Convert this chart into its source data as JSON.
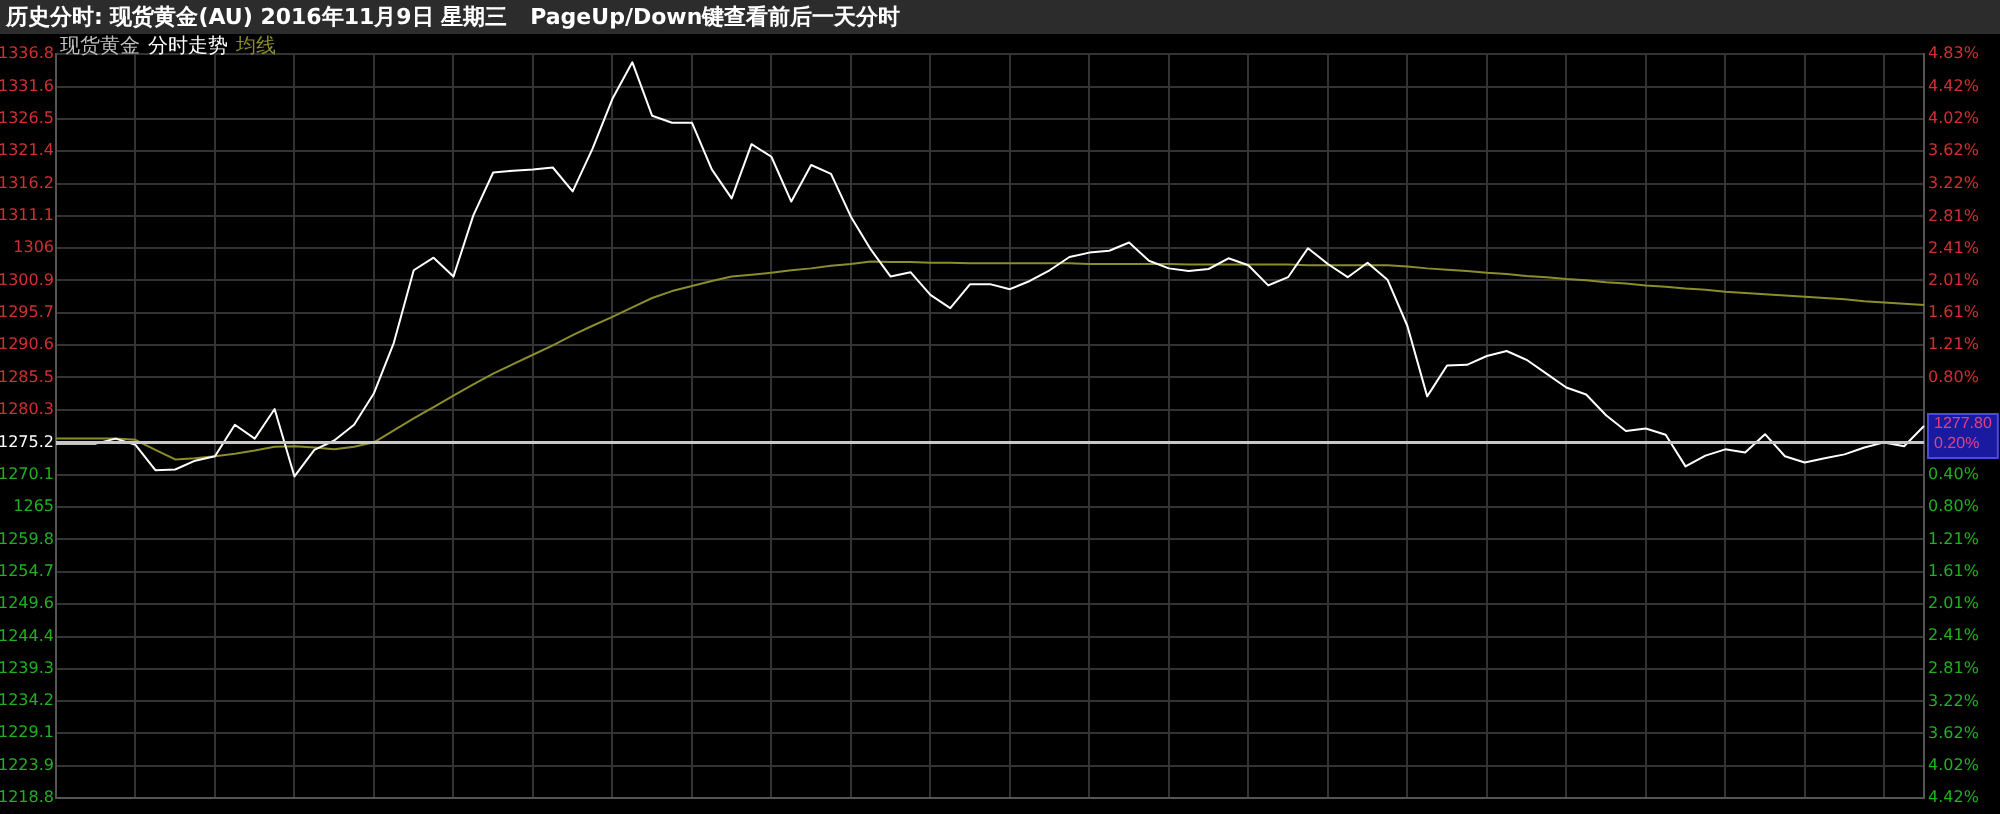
{
  "chart_data": {
    "type": "line",
    "title": "历史分时: 现货黄金(AU) 2016年11月9日 星期三   PageUp/Down键查看前后一天分时",
    "legend_title": "现货黄金",
    "categories": [
      null,
      null,
      null,
      null,
      null,
      null,
      null,
      null,
      null,
      null,
      null,
      null,
      null,
      null,
      null,
      null,
      null,
      null,
      null,
      null,
      null,
      null,
      null,
      null,
      null,
      null,
      null,
      null,
      null,
      null,
      null,
      null,
      null,
      null,
      null,
      null,
      null,
      null,
      null,
      null,
      null,
      null,
      null,
      null,
      null,
      null,
      null,
      null,
      null,
      null,
      null,
      null,
      null,
      null,
      null,
      null,
      null,
      null,
      null,
      null,
      null,
      null,
      null,
      null,
      null,
      null,
      null,
      null,
      null,
      null,
      null,
      null,
      null,
      null,
      null,
      null,
      null,
      null,
      null,
      null,
      null,
      null,
      null,
      null,
      null,
      null,
      null,
      null,
      null,
      null,
      null,
      null,
      null,
      null,
      null
    ],
    "series": [
      {
        "name": "分时走势",
        "color": "#ffffff",
        "values": [
          1275.0,
          1275.0,
          1275.0,
          1275.8,
          1274.8,
          1270.8,
          1270.9,
          1272.3,
          1273.0,
          1278.0,
          1275.8,
          1280.5,
          1269.8,
          1274.0,
          1275.5,
          1278.0,
          1283.0,
          1291.0,
          1302.5,
          1304.5,
          1301.5,
          1311.2,
          1318.0,
          1318.3,
          1318.5,
          1318.8,
          1315.0,
          1321.8,
          1329.7,
          1335.5,
          1327.0,
          1325.9,
          1325.9,
          1318.5,
          1313.9,
          1322.5,
          1320.5,
          1313.4,
          1319.2,
          1317.8,
          1311.0,
          1305.8,
          1301.5,
          1302.2,
          1298.6,
          1296.5,
          1300.3,
          1300.3,
          1299.5,
          1300.8,
          1302.5,
          1304.6,
          1305.3,
          1305.6,
          1306.9,
          1304.0,
          1302.8,
          1302.4,
          1302.7,
          1304.4,
          1303.3,
          1300.1,
          1301.4,
          1306.0,
          1303.5,
          1301.4,
          1303.7,
          1301.0,
          1293.7,
          1282.5,
          1287.4,
          1287.5,
          1288.9,
          1289.7,
          1288.3,
          1286.1,
          1283.9,
          1282.8,
          1279.5,
          1277.0,
          1277.4,
          1276.4,
          1271.4,
          1273.1,
          1274.1,
          1273.6,
          1276.5,
          1273.0,
          1272.0,
          1272.7,
          1273.3,
          1274.4,
          1275.2,
          1274.6,
          1277.8
        ]
      },
      {
        "name": "均线",
        "color": "#8c8c2c",
        "values": [
          1275.8,
          1275.8,
          1275.8,
          1275.8,
          1275.6,
          1274.0,
          1272.5,
          1272.7,
          1273.0,
          1273.4,
          1273.9,
          1274.5,
          1274.6,
          1274.4,
          1274.1,
          1274.5,
          1275.2,
          1277.1,
          1279.0,
          1280.8,
          1282.6,
          1284.4,
          1286.1,
          1287.6,
          1289.1,
          1290.6,
          1292.2,
          1293.7,
          1295.1,
          1296.6,
          1298.1,
          1299.2,
          1300.0,
          1300.8,
          1301.5,
          1301.8,
          1302.1,
          1302.5,
          1302.8,
          1303.2,
          1303.5,
          1303.9,
          1303.8,
          1303.8,
          1303.7,
          1303.7,
          1303.6,
          1303.6,
          1303.6,
          1303.6,
          1303.6,
          1303.6,
          1303.5,
          1303.5,
          1303.5,
          1303.5,
          1303.5,
          1303.4,
          1303.4,
          1303.4,
          1303.4,
          1303.4,
          1303.4,
          1303.3,
          1303.3,
          1303.3,
          1303.3,
          1303.3,
          1303.1,
          1302.8,
          1302.6,
          1302.4,
          1302.1,
          1301.9,
          1301.6,
          1301.4,
          1301.1,
          1300.9,
          1300.6,
          1300.4,
          1300.1,
          1299.9,
          1299.6,
          1299.4,
          1299.1,
          1298.9,
          1298.7,
          1298.5,
          1298.3,
          1298.1,
          1297.9,
          1297.6,
          1297.4,
          1297.2,
          1297.0
        ]
      }
    ],
    "ylim": [
      1218.8,
      1336.8
    ],
    "yticks": [
      1336.8,
      1331.6,
      1326.5,
      1321.4,
      1316.2,
      1311.1,
      1306.0,
      1300.9,
      1295.7,
      1290.6,
      1285.5,
      1280.3,
      1275.2,
      1270.1,
      1265.0,
      1259.8,
      1254.7,
      1249.6,
      1244.4,
      1239.3,
      1234.2,
      1229.1,
      1223.9,
      1218.8
    ],
    "y2lim": [
      -4.42,
      4.83
    ],
    "y2ticks": [
      {
        "value": 4.83,
        "label": "4.83%"
      },
      {
        "value": 4.42,
        "label": "4.42%"
      },
      {
        "value": 4.02,
        "label": "4.02%"
      },
      {
        "value": 3.62,
        "label": "3.62%"
      },
      {
        "value": 3.22,
        "label": "3.22%"
      },
      {
        "value": 2.81,
        "label": "2.81%"
      },
      {
        "value": 2.41,
        "label": "2.41%"
      },
      {
        "value": 2.01,
        "label": "2.01%"
      },
      {
        "value": 1.61,
        "label": "1.61%"
      },
      {
        "value": 1.21,
        "label": "1.21%"
      },
      {
        "value": 0.8,
        "label": "0.80%"
      },
      {
        "value": -0.4,
        "label": "0.40%"
      },
      {
        "value": -0.8,
        "label": "0.80%"
      },
      {
        "value": -1.21,
        "label": "1.21%"
      },
      {
        "value": -1.61,
        "label": "1.61%"
      },
      {
        "value": -2.01,
        "label": "2.01%"
      },
      {
        "value": -2.41,
        "label": "2.41%"
      },
      {
        "value": -2.81,
        "label": "2.81%"
      },
      {
        "value": -3.22,
        "label": "3.22%"
      },
      {
        "value": -3.62,
        "label": "3.62%"
      },
      {
        "value": -4.02,
        "label": "4.02%"
      },
      {
        "value": -4.42,
        "label": "4.42%"
      }
    ],
    "ref_lines": [
      {
        "axis": "y",
        "value": 1275.2,
        "color": "#c8c8c8"
      }
    ],
    "annotations": [
      "1277.80",
      "0.20%"
    ],
    "tick_labels": "y",
    "grid": true,
    "legend": "top left",
    "marker": "none",
    "line_style": "solid"
  }
}
